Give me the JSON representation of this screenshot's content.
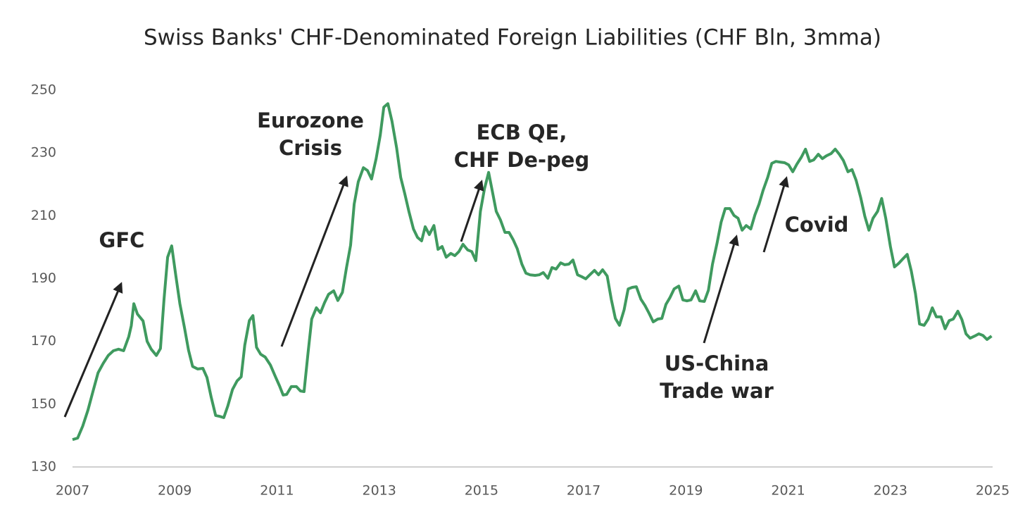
{
  "chart_data": {
    "type": "line",
    "title": "Swiss Banks' CHF-Denominated Foreign Liabilities (CHF Bln, 3mma)",
    "x": [
      2007.0,
      2007.1,
      2007.2,
      2007.3,
      2007.4,
      2007.5,
      2007.6,
      2007.7,
      2007.8,
      2007.9,
      2008.0,
      2008.1,
      2008.15,
      2008.2,
      2008.27,
      2008.38,
      2008.46,
      2008.54,
      2008.64,
      2008.72,
      2008.79,
      2008.86,
      2008.94,
      2009.02,
      2009.1,
      2009.19,
      2009.27,
      2009.35,
      2009.45,
      2009.55,
      2009.63,
      2009.71,
      2009.8,
      2009.88,
      2009.96,
      2010.04,
      2010.13,
      2010.22,
      2010.3,
      2010.37,
      2010.46,
      2010.53,
      2010.6,
      2010.68,
      2010.77,
      2010.87,
      2010.97,
      2011.05,
      2011.12,
      2011.19,
      2011.28,
      2011.38,
      2011.46,
      2011.53,
      2011.61,
      2011.68,
      2011.77,
      2011.85,
      2011.93,
      2012.01,
      2012.11,
      2012.19,
      2012.28,
      2012.36,
      2012.44,
      2012.51,
      2012.59,
      2012.69,
      2012.77,
      2012.85,
      2012.94,
      2013.02,
      2013.09,
      2013.17,
      2013.25,
      2013.34,
      2013.42,
      2013.5,
      2013.58,
      2013.67,
      2013.75,
      2013.83,
      2013.9,
      2013.98,
      2014.07,
      2014.15,
      2014.23,
      2014.31,
      2014.4,
      2014.48,
      2014.56,
      2014.64,
      2014.73,
      2014.81,
      2014.89,
      2014.98,
      2015.06,
      2015.14,
      2015.21,
      2015.29,
      2015.37,
      2015.46,
      2015.54,
      2015.62,
      2015.7,
      2015.79,
      2015.87,
      2015.95,
      2016.05,
      2016.13,
      2016.21,
      2016.3,
      2016.38,
      2016.46,
      2016.55,
      2016.63,
      2016.71,
      2016.79,
      2016.88,
      2016.96,
      2017.04,
      2017.12,
      2017.21,
      2017.29,
      2017.37,
      2017.46,
      2017.54,
      2017.62,
      2017.7,
      2017.79,
      2017.87,
      2017.95,
      2018.03,
      2018.12,
      2018.2,
      2018.28,
      2018.36,
      2018.45,
      2018.53,
      2018.61,
      2018.69,
      2018.77,
      2018.86,
      2018.94,
      2019.02,
      2019.1,
      2019.19,
      2019.27,
      2019.36,
      2019.44,
      2019.52,
      2019.61,
      2019.69,
      2019.77,
      2019.86,
      2019.94,
      2020.02,
      2020.1,
      2020.18,
      2020.27,
      2020.35,
      2020.43,
      2020.51,
      2020.6,
      2020.68,
      2020.76,
      2020.84,
      2020.93,
      2021.01,
      2021.09,
      2021.17,
      2021.26,
      2021.34,
      2021.42,
      2021.5,
      2021.59,
      2021.67,
      2021.75,
      2021.84,
      2021.92,
      2022.0,
      2022.08,
      2022.17,
      2022.25,
      2022.33,
      2022.42,
      2022.5,
      2022.58,
      2022.66,
      2022.75,
      2022.83,
      2022.91,
      2023.0,
      2023.08,
      2023.16,
      2023.24,
      2023.33,
      2023.41,
      2023.49,
      2023.57,
      2023.66,
      2023.74,
      2023.82,
      2023.9,
      2023.99,
      2024.07,
      2024.15,
      2024.23,
      2024.32,
      2024.4,
      2024.48,
      2024.56,
      2024.65,
      2024.73,
      2024.81,
      2024.89,
      2024.98
    ],
    "series": [
      {
        "color": "#3f9a5f",
        "values": [
          138.7,
          139.2,
          143,
          148,
          154,
          160,
          163,
          165.5,
          167,
          167.5,
          167,
          171.5,
          175,
          182,
          178.7,
          176.5,
          170,
          167.5,
          165.5,
          167.7,
          183.4,
          196.8,
          200.4,
          191,
          182,
          174.4,
          167.2,
          162,
          161.2,
          161.4,
          158.5,
          152.4,
          146.4,
          146.1,
          145.7,
          149.5,
          154.7,
          157.4,
          158.7,
          168.8,
          176.6,
          178.2,
          168.1,
          165.9,
          165,
          162.5,
          158.7,
          155.8,
          152.9,
          153.1,
          155.6,
          155.6,
          154.2,
          154,
          166.6,
          177.1,
          180.7,
          179.1,
          182.3,
          185,
          186.1,
          183,
          185.6,
          193.5,
          200.6,
          213.7,
          220.8,
          225.3,
          224.4,
          221.7,
          228.2,
          235.6,
          244.6,
          245.7,
          240.1,
          231.6,
          222.2,
          217,
          211.4,
          205.8,
          203.1,
          202,
          206.5,
          204,
          206.9,
          199.3,
          200.2,
          196.8,
          198,
          197.3,
          198.6,
          200.9,
          199.1,
          198.6,
          195.7,
          211.4,
          218.6,
          223.8,
          218.1,
          211.4,
          208.7,
          204.7,
          204.7,
          202.4,
          199.5,
          194.6,
          191.7,
          191.2,
          191,
          191.2,
          191.9,
          190.1,
          193.5,
          193,
          195,
          194.4,
          194.6,
          195.9,
          191.2,
          190.6,
          189.9,
          191.2,
          192.6,
          191.2,
          192.8,
          190.8,
          183.4,
          177.3,
          175.1,
          180,
          186.7,
          187.2,
          187.4,
          183.4,
          181.4,
          178.9,
          176.2,
          177.1,
          177.3,
          181.8,
          184,
          186.7,
          187.6,
          183.2,
          182.9,
          183.2,
          186.1,
          182.9,
          182.7,
          186.3,
          194.6,
          201.3,
          208,
          212.3,
          212.3,
          210.1,
          209.2,
          205.4,
          206.9,
          205.8,
          210.3,
          213.7,
          218.1,
          222.2,
          226.7,
          227.3,
          227.1,
          226.9,
          226.2,
          224,
          226.4,
          228.7,
          231.2,
          227.3,
          227.8,
          229.6,
          228.2,
          229.1,
          229.8,
          231.2,
          229.6,
          227.6,
          224,
          224.7,
          221.3,
          215.7,
          209.8,
          205.4,
          209.2,
          211.4,
          215.5,
          209.2,
          200.2,
          193.7,
          194.8,
          196.2,
          197.7,
          192.4,
          185.2,
          175.5,
          175.1,
          177.1,
          180.7,
          177.8,
          177.8,
          174,
          176.6,
          177.1,
          179.6,
          176.9,
          172.4,
          171,
          171.7,
          172.4,
          171.9,
          170.6,
          171.7
        ]
      }
    ],
    "xlim": [
      2007,
      2025
    ],
    "xticks": [
      2007,
      2009,
      2011,
      2013,
      2015,
      2017,
      2019,
      2021,
      2023,
      2025
    ],
    "ylim": [
      130,
      250
    ],
    "yticks": [
      130,
      150,
      170,
      190,
      210,
      230,
      250
    ],
    "grid": false,
    "annotations": [
      {
        "text": [
          "GFC"
        ]
      },
      {
        "text": [
          "Eurozone",
          "Crisis"
        ]
      },
      {
        "text": [
          "ECB QE,",
          "CHF De-peg"
        ]
      },
      {
        "text": [
          "US-China",
          "Trade war"
        ]
      },
      {
        "text": [
          "Covid"
        ]
      }
    ]
  }
}
